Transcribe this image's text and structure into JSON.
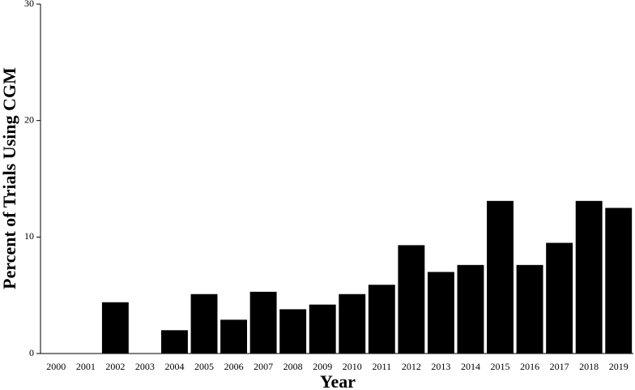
{
  "chart_data": {
    "type": "bar",
    "x_label": "Year",
    "y_label": "Percent of Trials Using CGM",
    "categories": [
      "2000",
      "2001",
      "2002",
      "2003",
      "2004",
      "2005",
      "2006",
      "2007",
      "2008",
      "2009",
      "2010",
      "2011",
      "2012",
      "2013",
      "2014",
      "2015",
      "2016",
      "2017",
      "2018",
      "2019"
    ],
    "values": [
      0,
      0,
      4.4,
      0,
      2.0,
      5.1,
      2.9,
      5.3,
      3.8,
      4.2,
      5.1,
      5.9,
      9.3,
      7.0,
      7.6,
      13.1,
      7.6,
      9.5,
      13.1,
      12.5
    ],
    "color": "#000000",
    "ylim": [
      0,
      30
    ],
    "yticks": [
      0,
      10,
      20,
      30
    ],
    "grid": false
  }
}
